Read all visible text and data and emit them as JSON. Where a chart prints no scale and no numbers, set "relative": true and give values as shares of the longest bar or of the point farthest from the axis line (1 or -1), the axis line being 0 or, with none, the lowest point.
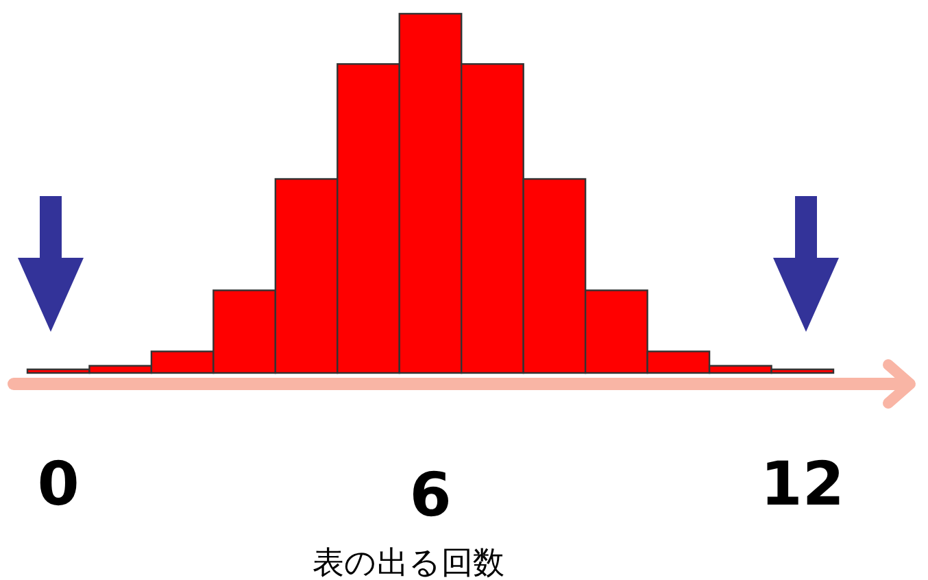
{
  "chart_data": {
    "type": "bar",
    "relative": true,
    "categories": [
      "0",
      null,
      null,
      null,
      null,
      null,
      "6",
      null,
      null,
      null,
      null,
      null,
      "12"
    ],
    "values": [
      0.01,
      0.02,
      0.06,
      0.23,
      0.54,
      0.86,
      1,
      0.86,
      0.54,
      0.23,
      0.06,
      0.02,
      0.01
    ],
    "color": "#ff0000",
    "xlabel": "表の出る回数"
  }
}
